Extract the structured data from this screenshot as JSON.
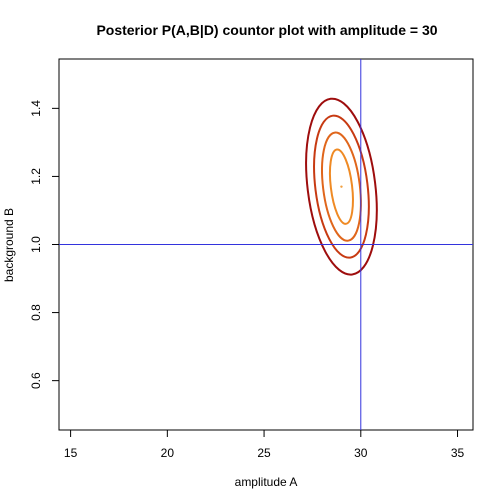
{
  "chart_data": {
    "type": "contour",
    "title": "Posterior P(A,B|D) countor plot with amplitude  = 30",
    "xlabel": "amplitude A",
    "ylabel": "background B",
    "xlim": [
      14.4,
      35.8
    ],
    "ylim": [
      0.455,
      1.545
    ],
    "xticks": [
      15,
      20,
      25,
      30,
      35
    ],
    "yticks": [
      0.6,
      0.8,
      1.0,
      1.2,
      1.4
    ],
    "ytick_labels": [
      "0.6",
      "0.8",
      "1.0",
      "1.2",
      "1.4"
    ],
    "reference_lines": {
      "vline_x": 30,
      "hline_y": 1.0,
      "color": "#3333dd"
    },
    "center": {
      "A": 29.0,
      "B": 1.17
    },
    "contours": [
      {
        "level": 1,
        "rx": 0.55,
        "ry": 0.11,
        "color": "#ef8a24"
      },
      {
        "level": 2,
        "rx": 0.95,
        "ry": 0.16,
        "color": "#e0661c"
      },
      {
        "level": 3,
        "rx": 1.35,
        "ry": 0.21,
        "color": "#c73a12"
      },
      {
        "level": 4,
        "rx": 1.75,
        "ry": 0.26,
        "color": "#9e0d0d"
      }
    ],
    "tilt_deg": -7,
    "grid": false,
    "legend": "none"
  }
}
